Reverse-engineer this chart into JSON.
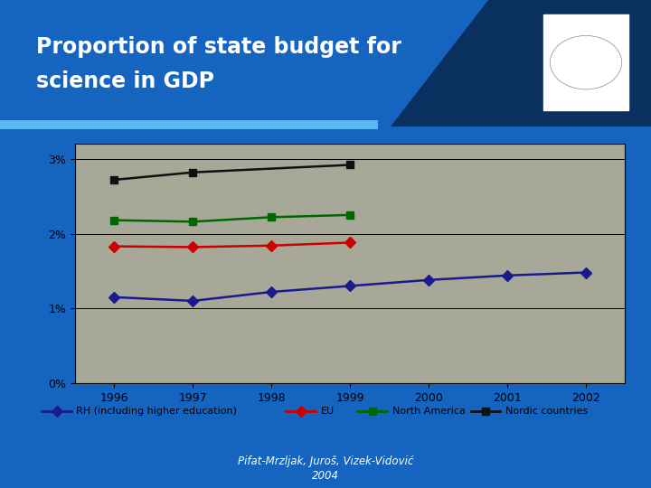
{
  "title_line1": "Proportion of state budget for",
  "title_line2": "science in GDP",
  "background_outer": "#1565c0",
  "chart_area_color": "#a8a898",
  "years": [
    1996,
    1997,
    1998,
    1999,
    2000,
    2001,
    2002
  ],
  "series": {
    "RH (including higher education)": {
      "color": "#1a1a8f",
      "marker": "D",
      "values": [
        1.15,
        1.1,
        1.22,
        1.3,
        1.38,
        1.44,
        1.48
      ]
    },
    "EU": {
      "color": "#cc0000",
      "marker": "D",
      "values": [
        1.83,
        1.82,
        1.84,
        1.88,
        null,
        null,
        null
      ]
    },
    "North America": {
      "color": "#006600",
      "marker": "s",
      "values": [
        2.18,
        2.16,
        2.22,
        2.25,
        null,
        null,
        null
      ]
    },
    "Nordic countries": {
      "color": "#111111",
      "marker": "s",
      "values": [
        2.72,
        2.82,
        null,
        2.92,
        null,
        null,
        null
      ]
    }
  },
  "yticks": [
    0,
    1,
    2,
    3
  ],
  "ytick_labels": [
    "0%",
    "1%",
    "2%",
    "3%"
  ],
  "ylim": [
    0,
    3.2
  ],
  "xlim": [
    1995.5,
    2002.5
  ],
  "citation_line1": "Pifat-Mrzljak, Juroš, Vizek-Vidović",
  "citation_line2": "2004",
  "legend_bg": "#ffffff",
  "cyan_bar_color": "#5bb8f5",
  "dark_band_color": "#0a3060"
}
